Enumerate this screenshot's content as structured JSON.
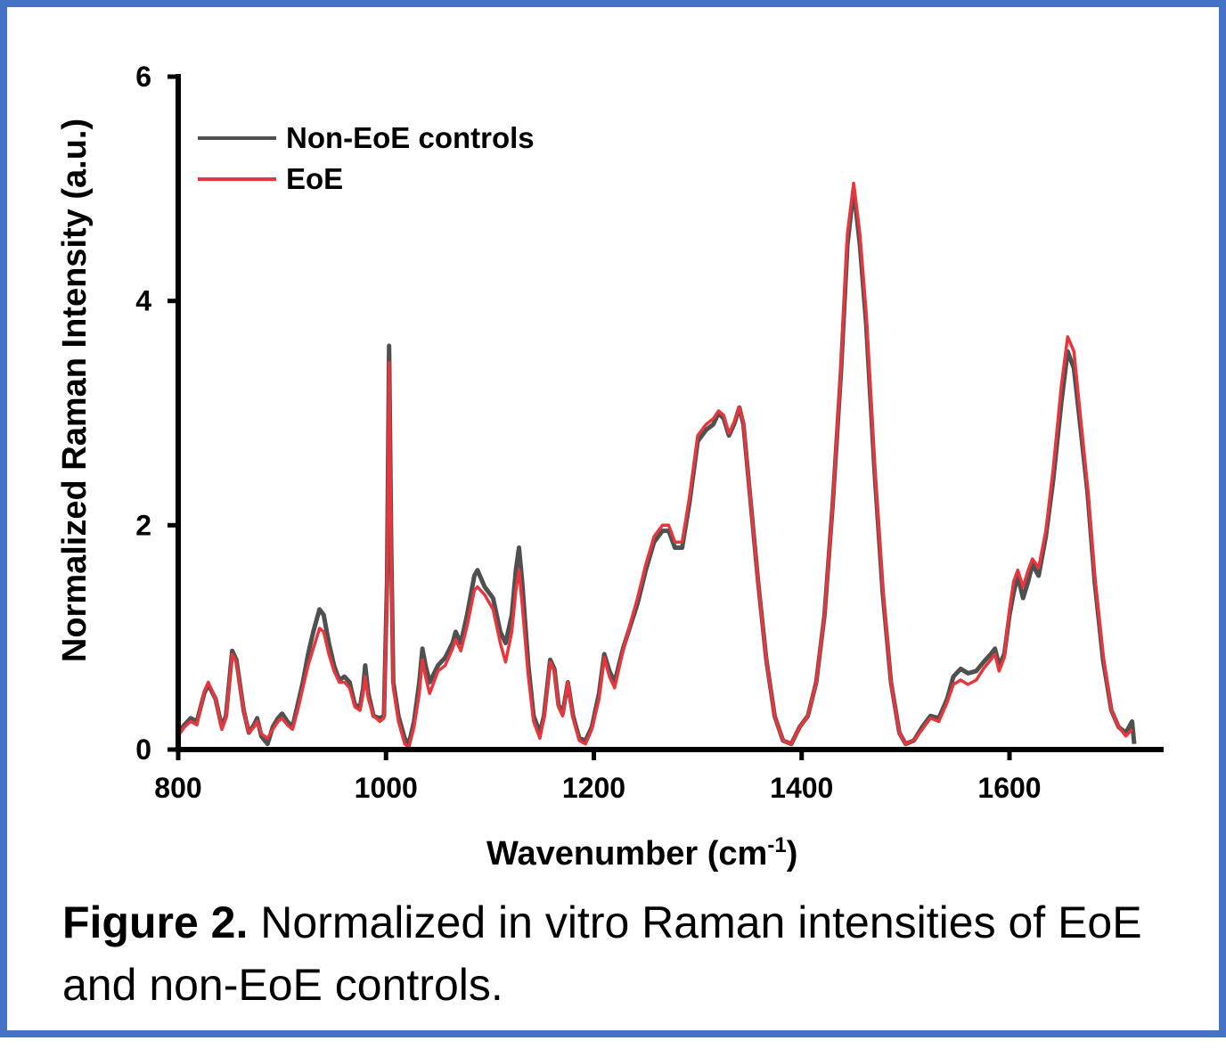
{
  "chart_data": {
    "type": "line",
    "title": "",
    "xlabel": "Wavenumber (cm",
    "xlabel_sup": "-1",
    "xlabel_suffix": ")",
    "ylabel": "Normalized Raman Intensity (a.u.)",
    "xlim": [
      800,
      1720
    ],
    "ylim": [
      0,
      6
    ],
    "xticks": [
      800,
      1000,
      1200,
      1400,
      1600
    ],
    "yticks": [
      0,
      2,
      4,
      6
    ],
    "legend_position": "top-left",
    "series": [
      {
        "name": "Non-EoE controls",
        "color": "#505050",
        "points": [
          [
            800,
            0.15
          ],
          [
            806,
            0.22
          ],
          [
            812,
            0.28
          ],
          [
            818,
            0.25
          ],
          [
            825,
            0.5
          ],
          [
            829,
            0.58
          ],
          [
            836,
            0.45
          ],
          [
            842,
            0.2
          ],
          [
            846,
            0.3
          ],
          [
            852,
            0.88
          ],
          [
            856,
            0.8
          ],
          [
            863,
            0.35
          ],
          [
            868,
            0.15
          ],
          [
            873,
            0.22
          ],
          [
            876,
            0.28
          ],
          [
            880,
            0.12
          ],
          [
            886,
            0.05
          ],
          [
            891,
            0.2
          ],
          [
            896,
            0.28
          ],
          [
            900,
            0.32
          ],
          [
            905,
            0.25
          ],
          [
            910,
            0.2
          ],
          [
            915,
            0.4
          ],
          [
            920,
            0.6
          ],
          [
            925,
            0.85
          ],
          [
            930,
            1.05
          ],
          [
            936,
            1.25
          ],
          [
            940,
            1.2
          ],
          [
            945,
            0.95
          ],
          [
            950,
            0.75
          ],
          [
            955,
            0.62
          ],
          [
            960,
            0.65
          ],
          [
            965,
            0.6
          ],
          [
            970,
            0.4
          ],
          [
            975,
            0.38
          ],
          [
            978,
            0.55
          ],
          [
            980,
            0.75
          ],
          [
            983,
            0.5
          ],
          [
            988,
            0.3
          ],
          [
            994,
            0.28
          ],
          [
            998,
            0.3
          ],
          [
            1001,
            1.5
          ],
          [
            1003,
            3.6
          ],
          [
            1005,
            1.8
          ],
          [
            1007,
            0.6
          ],
          [
            1012,
            0.3
          ],
          [
            1018,
            0.1
          ],
          [
            1022,
            0.05
          ],
          [
            1027,
            0.25
          ],
          [
            1032,
            0.6
          ],
          [
            1035,
            0.9
          ],
          [
            1038,
            0.75
          ],
          [
            1042,
            0.6
          ],
          [
            1050,
            0.75
          ],
          [
            1057,
            0.82
          ],
          [
            1064,
            0.95
          ],
          [
            1067,
            1.05
          ],
          [
            1072,
            0.95
          ],
          [
            1078,
            1.2
          ],
          [
            1085,
            1.55
          ],
          [
            1088,
            1.6
          ],
          [
            1095,
            1.45
          ],
          [
            1103,
            1.35
          ],
          [
            1110,
            1.05
          ],
          [
            1115,
            0.95
          ],
          [
            1121,
            1.2
          ],
          [
            1125,
            1.6
          ],
          [
            1128,
            1.8
          ],
          [
            1131,
            1.5
          ],
          [
            1137,
            0.75
          ],
          [
            1142,
            0.3
          ],
          [
            1148,
            0.15
          ],
          [
            1152,
            0.3
          ],
          [
            1158,
            0.8
          ],
          [
            1162,
            0.72
          ],
          [
            1166,
            0.4
          ],
          [
            1170,
            0.32
          ],
          [
            1175,
            0.6
          ],
          [
            1180,
            0.3
          ],
          [
            1186,
            0.1
          ],
          [
            1192,
            0.08
          ],
          [
            1198,
            0.2
          ],
          [
            1205,
            0.5
          ],
          [
            1210,
            0.85
          ],
          [
            1215,
            0.7
          ],
          [
            1220,
            0.6
          ],
          [
            1228,
            0.9
          ],
          [
            1235,
            1.1
          ],
          [
            1242,
            1.3
          ],
          [
            1250,
            1.6
          ],
          [
            1258,
            1.85
          ],
          [
            1266,
            1.95
          ],
          [
            1272,
            1.95
          ],
          [
            1278,
            1.8
          ],
          [
            1285,
            1.8
          ],
          [
            1292,
            2.2
          ],
          [
            1300,
            2.75
          ],
          [
            1308,
            2.85
          ],
          [
            1315,
            2.9
          ],
          [
            1320,
            3.0
          ],
          [
            1325,
            2.95
          ],
          [
            1330,
            2.8
          ],
          [
            1335,
            2.9
          ],
          [
            1340,
            3.05
          ],
          [
            1344,
            2.9
          ],
          [
            1350,
            2.3
          ],
          [
            1358,
            1.5
          ],
          [
            1366,
            0.8
          ],
          [
            1374,
            0.3
          ],
          [
            1382,
            0.08
          ],
          [
            1390,
            0.05
          ],
          [
            1398,
            0.2
          ],
          [
            1406,
            0.3
          ],
          [
            1414,
            0.6
          ],
          [
            1422,
            1.2
          ],
          [
            1430,
            2.2
          ],
          [
            1438,
            3.4
          ],
          [
            1444,
            4.5
          ],
          [
            1450,
            5.0
          ],
          [
            1456,
            4.5
          ],
          [
            1462,
            3.8
          ],
          [
            1470,
            2.5
          ],
          [
            1478,
            1.4
          ],
          [
            1486,
            0.6
          ],
          [
            1494,
            0.15
          ],
          [
            1500,
            0.05
          ],
          [
            1508,
            0.08
          ],
          [
            1516,
            0.2
          ],
          [
            1524,
            0.3
          ],
          [
            1532,
            0.28
          ],
          [
            1540,
            0.45
          ],
          [
            1546,
            0.65
          ],
          [
            1553,
            0.72
          ],
          [
            1560,
            0.68
          ],
          [
            1568,
            0.7
          ],
          [
            1575,
            0.78
          ],
          [
            1582,
            0.85
          ],
          [
            1586,
            0.9
          ],
          [
            1590,
            0.75
          ],
          [
            1595,
            0.85
          ],
          [
            1600,
            1.2
          ],
          [
            1604,
            1.4
          ],
          [
            1608,
            1.55
          ],
          [
            1613,
            1.35
          ],
          [
            1618,
            1.5
          ],
          [
            1622,
            1.65
          ],
          [
            1628,
            1.55
          ],
          [
            1635,
            1.9
          ],
          [
            1642,
            2.4
          ],
          [
            1650,
            3.1
          ],
          [
            1656,
            3.55
          ],
          [
            1662,
            3.4
          ],
          [
            1668,
            2.9
          ],
          [
            1675,
            2.3
          ],
          [
            1682,
            1.5
          ],
          [
            1690,
            0.8
          ],
          [
            1698,
            0.35
          ],
          [
            1705,
            0.2
          ],
          [
            1712,
            0.15
          ],
          [
            1718,
            0.25
          ],
          [
            1720,
            0.05
          ]
        ]
      },
      {
        "name": "EoE",
        "color": "#e8363d",
        "points": [
          [
            800,
            0.12
          ],
          [
            806,
            0.2
          ],
          [
            812,
            0.25
          ],
          [
            818,
            0.22
          ],
          [
            825,
            0.52
          ],
          [
            829,
            0.6
          ],
          [
            836,
            0.45
          ],
          [
            842,
            0.18
          ],
          [
            846,
            0.28
          ],
          [
            852,
            0.85
          ],
          [
            856,
            0.78
          ],
          [
            863,
            0.35
          ],
          [
            868,
            0.15
          ],
          [
            873,
            0.2
          ],
          [
            876,
            0.25
          ],
          [
            880,
            0.14
          ],
          [
            886,
            0.1
          ],
          [
            891,
            0.18
          ],
          [
            896,
            0.25
          ],
          [
            900,
            0.28
          ],
          [
            905,
            0.22
          ],
          [
            910,
            0.18
          ],
          [
            915,
            0.35
          ],
          [
            920,
            0.55
          ],
          [
            925,
            0.75
          ],
          [
            930,
            0.9
          ],
          [
            936,
            1.08
          ],
          [
            940,
            1.05
          ],
          [
            945,
            0.85
          ],
          [
            950,
            0.7
          ],
          [
            955,
            0.6
          ],
          [
            960,
            0.6
          ],
          [
            965,
            0.55
          ],
          [
            970,
            0.38
          ],
          [
            975,
            0.35
          ],
          [
            978,
            0.5
          ],
          [
            980,
            0.65
          ],
          [
            983,
            0.45
          ],
          [
            988,
            0.3
          ],
          [
            994,
            0.25
          ],
          [
            998,
            0.28
          ],
          [
            1001,
            1.4
          ],
          [
            1003,
            3.45
          ],
          [
            1005,
            1.7
          ],
          [
            1007,
            0.55
          ],
          [
            1012,
            0.25
          ],
          [
            1018,
            0.05
          ],
          [
            1022,
            0.02
          ],
          [
            1027,
            0.2
          ],
          [
            1032,
            0.5
          ],
          [
            1035,
            0.8
          ],
          [
            1038,
            0.65
          ],
          [
            1042,
            0.5
          ],
          [
            1050,
            0.7
          ],
          [
            1057,
            0.75
          ],
          [
            1064,
            0.9
          ],
          [
            1067,
            0.98
          ],
          [
            1072,
            0.88
          ],
          [
            1078,
            1.1
          ],
          [
            1085,
            1.42
          ],
          [
            1088,
            1.45
          ],
          [
            1095,
            1.38
          ],
          [
            1103,
            1.25
          ],
          [
            1110,
            0.95
          ],
          [
            1115,
            0.78
          ],
          [
            1121,
            1.05
          ],
          [
            1125,
            1.42
          ],
          [
            1128,
            1.6
          ],
          [
            1131,
            1.3
          ],
          [
            1137,
            0.65
          ],
          [
            1142,
            0.25
          ],
          [
            1148,
            0.1
          ],
          [
            1152,
            0.28
          ],
          [
            1158,
            0.78
          ],
          [
            1162,
            0.7
          ],
          [
            1166,
            0.38
          ],
          [
            1170,
            0.3
          ],
          [
            1175,
            0.6
          ],
          [
            1180,
            0.28
          ],
          [
            1186,
            0.08
          ],
          [
            1192,
            0.05
          ],
          [
            1198,
            0.18
          ],
          [
            1205,
            0.45
          ],
          [
            1210,
            0.82
          ],
          [
            1215,
            0.65
          ],
          [
            1220,
            0.55
          ],
          [
            1228,
            0.88
          ],
          [
            1235,
            1.12
          ],
          [
            1242,
            1.35
          ],
          [
            1250,
            1.65
          ],
          [
            1258,
            1.9
          ],
          [
            1266,
            2.0
          ],
          [
            1272,
            2.0
          ],
          [
            1278,
            1.85
          ],
          [
            1285,
            1.85
          ],
          [
            1292,
            2.25
          ],
          [
            1300,
            2.8
          ],
          [
            1308,
            2.9
          ],
          [
            1315,
            2.95
          ],
          [
            1320,
            3.02
          ],
          [
            1325,
            2.98
          ],
          [
            1330,
            2.82
          ],
          [
            1335,
            2.92
          ],
          [
            1340,
            3.05
          ],
          [
            1344,
            2.92
          ],
          [
            1350,
            2.3
          ],
          [
            1358,
            1.5
          ],
          [
            1366,
            0.8
          ],
          [
            1374,
            0.3
          ],
          [
            1382,
            0.08
          ],
          [
            1390,
            0.05
          ],
          [
            1398,
            0.2
          ],
          [
            1406,
            0.3
          ],
          [
            1414,
            0.6
          ],
          [
            1422,
            1.2
          ],
          [
            1430,
            2.2
          ],
          [
            1438,
            3.45
          ],
          [
            1444,
            4.6
          ],
          [
            1450,
            5.05
          ],
          [
            1456,
            4.6
          ],
          [
            1462,
            3.9
          ],
          [
            1470,
            2.55
          ],
          [
            1478,
            1.45
          ],
          [
            1486,
            0.6
          ],
          [
            1494,
            0.15
          ],
          [
            1500,
            0.05
          ],
          [
            1508,
            0.08
          ],
          [
            1516,
            0.18
          ],
          [
            1524,
            0.28
          ],
          [
            1532,
            0.25
          ],
          [
            1540,
            0.42
          ],
          [
            1546,
            0.58
          ],
          [
            1553,
            0.62
          ],
          [
            1560,
            0.58
          ],
          [
            1568,
            0.62
          ],
          [
            1575,
            0.72
          ],
          [
            1582,
            0.8
          ],
          [
            1586,
            0.85
          ],
          [
            1590,
            0.7
          ],
          [
            1595,
            0.82
          ],
          [
            1600,
            1.25
          ],
          [
            1604,
            1.5
          ],
          [
            1608,
            1.6
          ],
          [
            1613,
            1.45
          ],
          [
            1618,
            1.6
          ],
          [
            1622,
            1.7
          ],
          [
            1628,
            1.62
          ],
          [
            1635,
            1.95
          ],
          [
            1642,
            2.5
          ],
          [
            1650,
            3.25
          ],
          [
            1656,
            3.68
          ],
          [
            1662,
            3.55
          ],
          [
            1668,
            3.0
          ],
          [
            1675,
            2.35
          ],
          [
            1682,
            1.55
          ],
          [
            1690,
            0.85
          ],
          [
            1698,
            0.35
          ],
          [
            1705,
            0.2
          ],
          [
            1712,
            0.12
          ],
          [
            1718,
            0.18
          ]
        ]
      }
    ]
  },
  "caption": {
    "bold": "Figure 2.",
    "text": " Normalized in vitro Raman intensities of EoE and non-EoE controls."
  }
}
